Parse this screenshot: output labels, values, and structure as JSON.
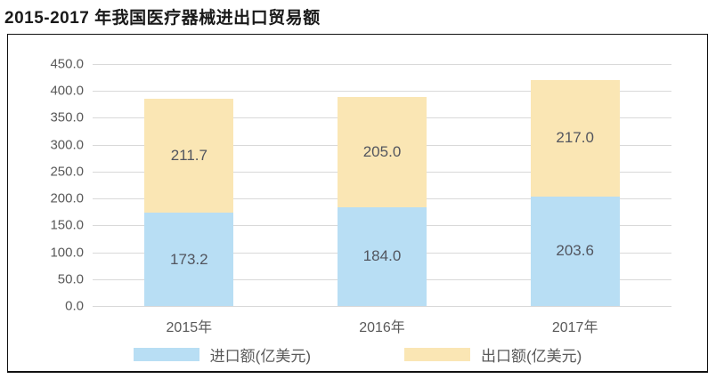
{
  "page": {
    "title": "2015-2017 年我国医疗器械进出口贸易额"
  },
  "chart_data": {
    "type": "bar",
    "stacked": true,
    "title": "2015-2017 年我国医疗器械进出口贸易额",
    "categories": [
      "2015年",
      "2016年",
      "2017年"
    ],
    "series": [
      {
        "name": "进口额(亿美元)",
        "color": "#b8def4",
        "values": [
          173.2,
          184.0,
          203.6
        ]
      },
      {
        "name": "出口额(亿美元)",
        "color": "#fae6b4",
        "values": [
          211.7,
          205.0,
          217.0
        ]
      }
    ],
    "totals": [
      384.9,
      389.0,
      420.6
    ],
    "ylim": [
      0,
      450
    ],
    "ytick_step": 50,
    "ytick_labels": [
      "0.0",
      "50.0",
      "100.0",
      "150.0",
      "200.0",
      "250.0",
      "300.0",
      "350.0",
      "400.0",
      "450.0"
    ],
    "grid": true,
    "legend_position": "bottom",
    "colors": {
      "import_bar": "#b8def4",
      "export_bar": "#fae6b4",
      "gridline": "#d9d9d9",
      "frame_border": "#111111",
      "tick_text": "#595959",
      "title_text": "#1a1a1a",
      "background": "#ffffff"
    }
  }
}
